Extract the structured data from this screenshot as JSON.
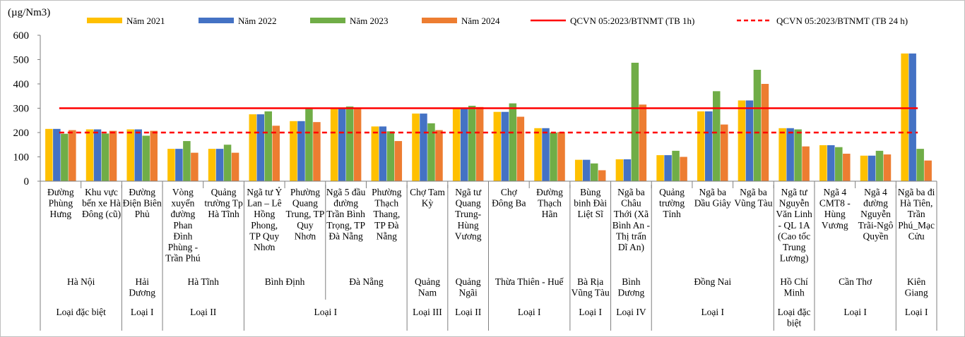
{
  "chart_data": {
    "type": "bar",
    "unit_label": "(µg/Nm3)",
    "ylim": [
      0,
      600
    ],
    "yticks": [
      "0",
      "100",
      "200",
      "300",
      "400",
      "500",
      "600"
    ],
    "grid": false,
    "legend_position": "top",
    "categories": [
      "Đường Phùng Hưng",
      "Khu vực bến xe Hà Đông (cũ)",
      "Đường Điện Biên Phủ",
      "Vòng xuyến đường Phan Đình Phùng - Trần Phú",
      "Quảng trường Tp Hà Tĩnh",
      "Ngã tư Ỷ Lan – Lê Hồng Phong, TP Quy Nhơn",
      "Phường Quang Trung, TP Quy Nhơn",
      "Ngã 5 đầu đường Trần Bình Trọng, TP Đà Nẵng",
      "Phường Thạch Thang, TP Đà Nẵng",
      "Chợ Tam Kỳ",
      "Ngã tư Quang Trung-Hùng Vương",
      "Chợ Đông Ba",
      "Đường Thạch Hãn",
      "Bùng binh Đài Liệt Sĩ",
      "Ngã ba Châu Thới (Xã Bình An - Thị trấn Dĩ An)",
      "Quảng trường Tỉnh",
      "Ngã ba Dầu Giây",
      "Ngã ba Vũng Tàu",
      "Ngã tư Nguyễn Văn Linh - QL 1A (Cao tốc Trung Lương)",
      "Ngã 4 CMT8 - Hùng Vương",
      "Ngã 4 đường Nguyễn Trãi-Ngô Quyền",
      "Ngã ba đi Hà Tiên, Trần Phú_Mạc Cửu"
    ],
    "category_lines": [
      [
        "Đường",
        "Phùng",
        "Hưng"
      ],
      [
        "Khu vực",
        "bến xe Hà",
        "Đông (cũ)"
      ],
      [
        "Đường",
        "Điện Biên",
        "Phủ"
      ],
      [
        "Vòng",
        "xuyến",
        "đường",
        "Phan",
        "Đình",
        "Phùng -",
        "Trần Phú"
      ],
      [
        "Quảng",
        "trường Tp",
        "Hà Tĩnh"
      ],
      [
        "Ngã tư Ỷ",
        "Lan – Lê",
        "Hồng",
        "Phong,",
        "TP Quy",
        "Nhơn"
      ],
      [
        "Phường",
        "Quang",
        "Trung, TP",
        "Quy",
        "Nhơn"
      ],
      [
        "Ngã 5 đầu",
        "đường",
        "Trần Bình",
        "Trọng, TP",
        "Đà Nẵng"
      ],
      [
        "Phường",
        "Thạch",
        "Thang,",
        "TP Đà",
        "Nẵng"
      ],
      [
        "Chợ Tam",
        "Kỳ"
      ],
      [
        "Ngã tư",
        "Quang",
        "Trung-",
        "Hùng",
        "Vương"
      ],
      [
        "Chợ",
        "Đông Ba"
      ],
      [
        "Đường",
        "Thạch",
        "Hãn"
      ],
      [
        "Bùng",
        "binh Đài",
        "Liệt Sĩ"
      ],
      [
        "Ngã ba",
        "Châu",
        "Thới (Xã",
        "Bình An -",
        "Thị trấn",
        "Dĩ An)"
      ],
      [
        "Quảng",
        "trường",
        "Tỉnh"
      ],
      [
        "Ngã ba",
        "Dầu Giây"
      ],
      [
        "Ngã ba",
        "Vũng Tàu"
      ],
      [
        "Ngã tư",
        "Nguyễn",
        "Văn Linh",
        "- QL 1A",
        "(Cao tốc",
        "Trung",
        "Lương)"
      ],
      [
        "Ngã 4",
        "CMT8 -",
        "Hùng",
        "Vương"
      ],
      [
        "Ngã 4",
        "đường",
        "Nguyễn",
        "Trãi-Ngô",
        "Quyền"
      ],
      [
        "Ngã ba đi",
        "Hà Tiên,",
        "Trần",
        "Phú_Mạc",
        "Cửu"
      ]
    ],
    "series": [
      {
        "name": "Năm 2021",
        "color": "#FFC000",
        "values": [
          215,
          213,
          213,
          133,
          133,
          275,
          247,
          300,
          225,
          278,
          300,
          285,
          218,
          88,
          90,
          107,
          287,
          332,
          218,
          148,
          105,
          525
        ]
      },
      {
        "name": "Năm 2022",
        "color": "#4472C4",
        "values": [
          215,
          213,
          213,
          133,
          133,
          275,
          247,
          300,
          225,
          278,
          300,
          285,
          218,
          88,
          90,
          107,
          287,
          332,
          218,
          148,
          105,
          525
        ]
      },
      {
        "name": "Năm 2023",
        "color": "#70AD47",
        "values": [
          195,
          196,
          187,
          165,
          150,
          287,
          300,
          307,
          205,
          238,
          310,
          320,
          200,
          73,
          487,
          125,
          370,
          458,
          213,
          140,
          125,
          133
        ]
      },
      {
        "name": "Năm 2024",
        "color": "#ED7D31",
        "values": [
          210,
          207,
          207,
          117,
          117,
          228,
          243,
          303,
          165,
          210,
          305,
          265,
          202,
          45,
          315,
          100,
          233,
          400,
          143,
          113,
          110,
          85
        ]
      }
    ],
    "reference_lines": [
      {
        "name": "QCVN 05:2023/BTNMT (TB 1h)",
        "value": 300,
        "color": "#FF0000",
        "style": "solid"
      },
      {
        "name": "QCVN 05:2023/BTNMT (TB 24 h)",
        "value": 200,
        "color": "#FF0000",
        "style": "dashed"
      }
    ],
    "groups_province": [
      {
        "label": [
          "Hà Nội"
        ],
        "from": 0,
        "to": 1
      },
      {
        "label": [
          "Hải",
          "Dương"
        ],
        "from": 2,
        "to": 2
      },
      {
        "label": [
          "Hà Tĩnh"
        ],
        "from": 3,
        "to": 4
      },
      {
        "label": [
          "Bình Định"
        ],
        "from": 5,
        "to": 6
      },
      {
        "label": [
          "Đà Nẵng"
        ],
        "from": 7,
        "to": 8
      },
      {
        "label": [
          "Quảng",
          "Nam"
        ],
        "from": 9,
        "to": 9
      },
      {
        "label": [
          "Quảng",
          "Ngãi"
        ],
        "from": 10,
        "to": 10
      },
      {
        "label": [
          "Thừa Thiên - Huế"
        ],
        "from": 11,
        "to": 12
      },
      {
        "label": [
          "Bà Rịa",
          "Vũng Tàu"
        ],
        "from": 13,
        "to": 13
      },
      {
        "label": [
          "Bình",
          "Dương"
        ],
        "from": 14,
        "to": 14
      },
      {
        "label": [
          "Đồng Nai"
        ],
        "from": 15,
        "to": 17
      },
      {
        "label": [
          "Hồ Chí",
          "Minh"
        ],
        "from": 18,
        "to": 18
      },
      {
        "label": [
          "Cần Thơ"
        ],
        "from": 19,
        "to": 20
      },
      {
        "label": [
          "Kiên",
          "Giang"
        ],
        "from": 21,
        "to": 21
      }
    ],
    "groups_class": [
      {
        "label": [
          "Loại đặc biệt"
        ],
        "from": 0,
        "to": 1
      },
      {
        "label": [
          "Loại I"
        ],
        "from": 2,
        "to": 2
      },
      {
        "label": [
          "Loại II"
        ],
        "from": 3,
        "to": 4
      },
      {
        "label": [
          "Loại I"
        ],
        "from": 5,
        "to": 8
      },
      {
        "label": [
          "Loại III"
        ],
        "from": 9,
        "to": 9
      },
      {
        "label": [
          "Loại II"
        ],
        "from": 10,
        "to": 10
      },
      {
        "label": [
          "Loại I"
        ],
        "from": 11,
        "to": 12
      },
      {
        "label": [
          "Loại I"
        ],
        "from": 13,
        "to": 13
      },
      {
        "label": [
          "Loại IV"
        ],
        "from": 14,
        "to": 14
      },
      {
        "label": [
          "Loại I"
        ],
        "from": 15,
        "to": 17
      },
      {
        "label": [
          "Loại đặc",
          "biệt"
        ],
        "from": 18,
        "to": 18
      },
      {
        "label": [
          "Loại I"
        ],
        "from": 19,
        "to": 20
      },
      {
        "label": [
          "Loại I"
        ],
        "from": 21,
        "to": 21
      }
    ]
  }
}
